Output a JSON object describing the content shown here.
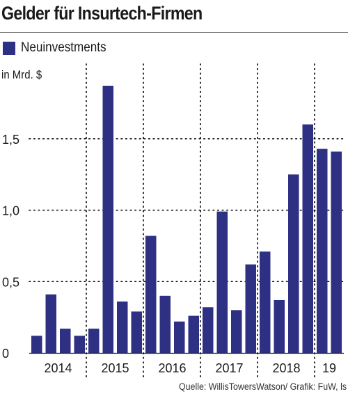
{
  "title": "Gelder für Insurtech-Firmen",
  "unit_label": "in Mrd. $",
  "source": "Quelle: WillisTowersWatson/ Grafik: FuW, ls",
  "colors": {
    "bar": "#2e3083",
    "grid": "#000000"
  },
  "chart_data": {
    "type": "bar",
    "series": [
      {
        "name": "Neuinvestments",
        "values": [
          0.12,
          0.41,
          0.17,
          0.12,
          0.17,
          1.87,
          0.36,
          0.29,
          0.82,
          0.4,
          0.22,
          0.26,
          0.32,
          0.99,
          0.3,
          0.62,
          0.71,
          0.37,
          1.25,
          1.6,
          1.43,
          1.41
        ]
      }
    ],
    "groups": [
      {
        "label": "2014",
        "count": 4
      },
      {
        "label": "2015",
        "count": 4
      },
      {
        "label": "2016",
        "count": 4
      },
      {
        "label": "2017",
        "count": 4
      },
      {
        "label": "2018",
        "count": 4
      },
      {
        "label": "19",
        "count": 2
      }
    ],
    "yticks": [
      {
        "value": 0,
        "label": "0"
      },
      {
        "value": 0.5,
        "label": "0,5"
      },
      {
        "value": 1.0,
        "label": "1,0"
      },
      {
        "value": 1.5,
        "label": "1,5"
      }
    ],
    "ylim": [
      0,
      1.97
    ],
    "grid": true,
    "legend_position": "top-left"
  }
}
